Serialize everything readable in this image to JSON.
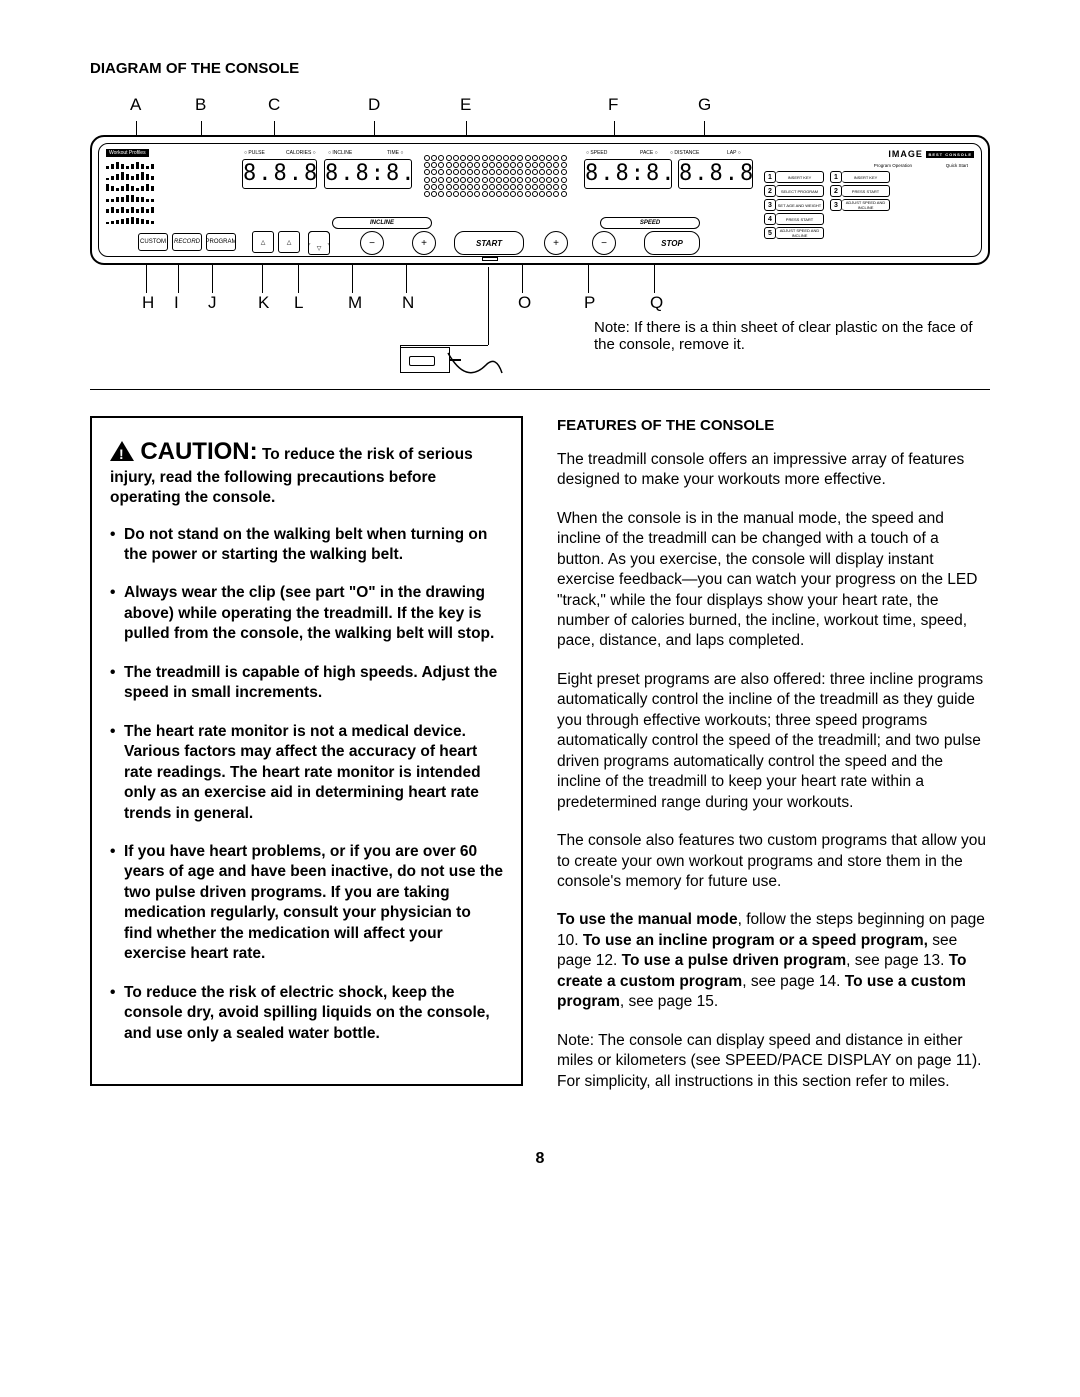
{
  "diagram": {
    "heading": "DIAGRAM OF THE CONSOLE",
    "top_labels": {
      "A": 40,
      "B": 105,
      "C": 178,
      "D": 278,
      "E": 370,
      "F": 518,
      "G": 608
    },
    "bottom_labels": {
      "H": 52,
      "I": 84,
      "J": 118,
      "K": 168,
      "L": 204,
      "M": 258,
      "N": 312,
      "O": 428,
      "P": 494,
      "Q": 560
    },
    "displays": {
      "left": "8.8.8",
      "mid": "8.8:8.8",
      "right1": "8.8:8.8",
      "right2": "8.8.8"
    },
    "small_labels": [
      "PULSE",
      "CALORIES",
      "INCLINE",
      "TIME",
      "SPEED",
      "PACE",
      "DISTANCE",
      "LAP"
    ],
    "brand": "IMAGE",
    "brand_sub": "BEST CONSOLE",
    "profile_header": "Workout Profiles",
    "step_col1_head": "Program Operation",
    "step_col2_head": "Quick Start",
    "steps_col1": [
      "INSERT KEY",
      "SELECT PROGRAM",
      "SET AGE AND WEIGHT",
      "PRESS START",
      "ADJUST SPEED AND INCLINE"
    ],
    "steps_col2": [
      "INSERT KEY",
      "PRESS START",
      "ADJUST SPEED AND INCLINE"
    ],
    "incline_label": "INCLINE",
    "speed_label": "SPEED",
    "start_label": "START",
    "stop_label": "STOP",
    "note": "Note: If there is a thin sheet of clear plastic on the face of the console, remove it."
  },
  "caution": {
    "word": "CAUTION:",
    "intro": "To reduce the risk of serious injury, read the following precautions before operating the console.",
    "bullets": [
      "Do not stand on the walking belt when turning on the power or starting the walking belt.",
      "Always wear the clip (see part \"O\" in the drawing above) while operating the treadmill. If the key is pulled from the console, the walking belt will stop.",
      "The treadmill is capable of high speeds. Adjust the speed in small increments.",
      "The heart rate monitor is not a medical device. Various factors may affect the accuracy of heart rate readings. The heart rate monitor is intended only as an exercise aid in determining heart rate trends in general.",
      "If you have heart problems, or if you are over 60 years of age and have been inactive, do not use the two pulse driven programs. If you are taking medication regularly, consult your physician to find whether the medication will affect your exercise heart rate.",
      "To reduce the risk of electric shock, keep the console dry, avoid spilling liquids on the console, and use only a sealed water bottle."
    ]
  },
  "features": {
    "heading": "FEATURES OF THE CONSOLE",
    "p1": "The treadmill console offers an impressive array of features designed to make your workouts more effective.",
    "p2": "When the console is in the manual mode, the speed and incline of the treadmill can be changed with a touch of a button. As you exercise, the console will display instant exercise feedback—you can watch your progress on the LED \"track,\" while the four displays show your heart rate, the number of calories burned, the incline, workout time, speed, pace, distance, and laps completed.",
    "p3": "Eight preset programs are also offered: three incline programs automatically control the incline of the treadmill as they guide you through effective workouts; three speed programs automatically control the speed of the treadmill; and two pulse driven programs automatically control the speed and the incline of the treadmill to keep your heart rate within a predetermined range during your workouts.",
    "p4": "The console also features two custom programs that allow you to create your own workout programs and store them in the console's memory for future use.",
    "p5_a": "To use the manual mode",
    "p5_b": ", follow the steps beginning on page 10. ",
    "p5_c": "To use an incline program or a speed program,",
    "p5_d": " see page 12. ",
    "p5_e": "To use a pulse driven program",
    "p5_f": ", see page 13. ",
    "p5_g": "To create a custom program",
    "p5_h": ", see page 14. ",
    "p5_i": "To use a custom program",
    "p5_j": ", see page 15.",
    "p6": "Note: The console can display speed and distance in either miles or kilometers (see SPEED/PACE DISPLAY on page 11). For simplicity, all instructions in this section refer to miles."
  },
  "page_number": "8"
}
